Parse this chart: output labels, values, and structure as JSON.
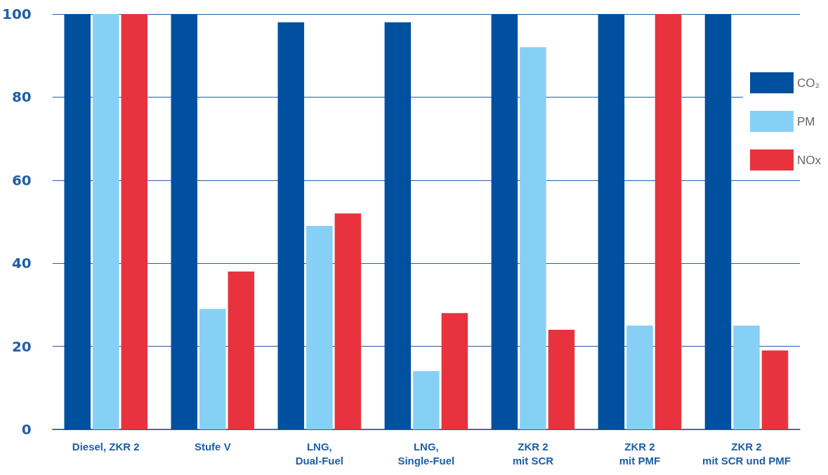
{
  "chart_data": {
    "type": "bar",
    "categories": [
      "Diesel, ZKR 2",
      "Stufe V",
      "LNG,\nDual-Fuel",
      "LNG,\nSingle-Fuel",
      "ZKR 2\nmit SCR",
      "ZKR 2\nmit PMF",
      "ZKR 2\nmit SCR und PMF"
    ],
    "series": [
      {
        "name": "CO₂",
        "color": "#0050a0",
        "values": [
          100,
          100,
          98,
          98,
          100,
          100,
          100
        ]
      },
      {
        "name": "PM",
        "color": "#87d0f5",
        "values": [
          100,
          29,
          49,
          14,
          92,
          25,
          25
        ]
      },
      {
        "name": "NOx",
        "color": "#e8333f",
        "values": [
          100,
          38,
          52,
          28,
          24,
          100,
          19
        ]
      }
    ],
    "ylim": [
      0,
      100
    ],
    "yticks": [
      0,
      20,
      40,
      60,
      80,
      100
    ],
    "grid": "y",
    "legend": "top right"
  }
}
